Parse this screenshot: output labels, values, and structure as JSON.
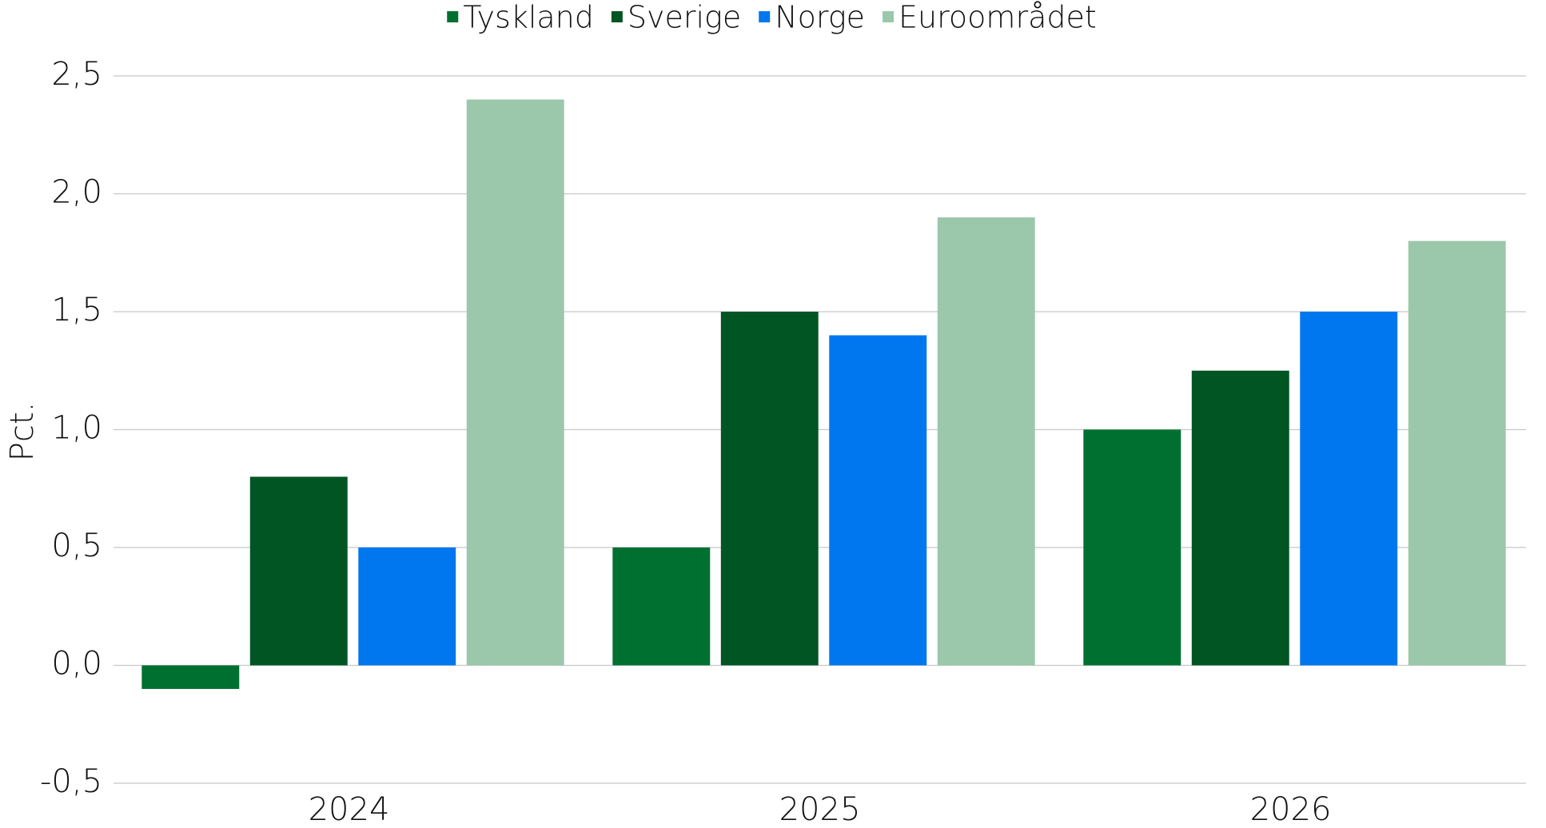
{
  "chart_data": {
    "type": "bar",
    "y_label": "Pct.",
    "categories": [
      "2024",
      "2025",
      "2026"
    ],
    "series": [
      {
        "name": "Tyskland",
        "color": "#007030",
        "values": [
          -0.1,
          0.5,
          1.0
        ]
      },
      {
        "name": "Sverige",
        "color": "#005523",
        "values": [
          0.8,
          1.5,
          1.25
        ]
      },
      {
        "name": "Norge",
        "color": "#0077ee",
        "values": [
          0.5,
          1.4,
          1.5
        ]
      },
      {
        "name": "Euroområdet",
        "color": "#9bc7aa",
        "values": [
          2.4,
          1.9,
          1.8
        ]
      }
    ],
    "ylim": [
      -0.5,
      2.5
    ],
    "yticks": [
      {
        "value": -0.5,
        "label": "-0,5"
      },
      {
        "value": 0,
        "label": "0,0"
      },
      {
        "value": 0.5,
        "label": "0,5"
      },
      {
        "value": 1,
        "label": "1,0"
      },
      {
        "value": 1.5,
        "label": "1,5"
      },
      {
        "value": 2,
        "label": "2,0"
      },
      {
        "value": 2.5,
        "label": "2,5"
      }
    ],
    "grid": true,
    "legend": "top"
  }
}
